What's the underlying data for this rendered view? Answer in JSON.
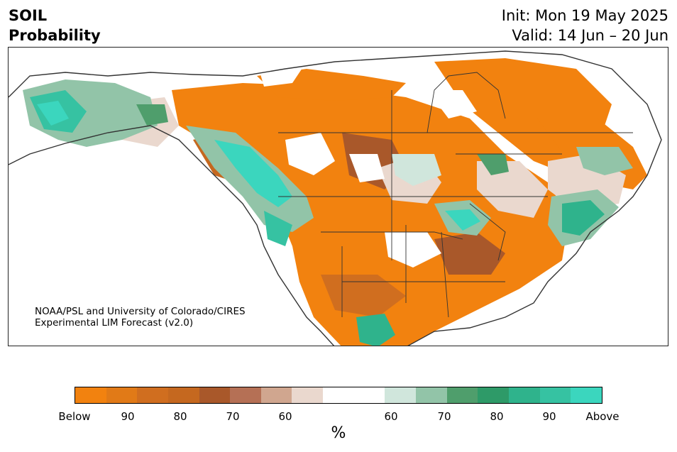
{
  "header": {
    "variable": "SOIL",
    "metric": "Probability",
    "init": "Init: Mon 19 May 2025",
    "valid": "Valid: 14 Jun – 20 Jun"
  },
  "credit": {
    "line1": "NOAA/PSL and University of Colorado/CIRES",
    "line2": "Experimental LIM Forecast (v2.0)"
  },
  "colorbar": {
    "unit": "%",
    "colors": [
      "#f2820f",
      "#e17a17",
      "#d06e1f",
      "#c5681f",
      "#a9582a",
      "#b57055",
      "#d0a68f",
      "#ead8ce",
      "#ffffff",
      "#ffffff",
      "#d0e6dc",
      "#92c4a8",
      "#4f9e6c",
      "#2e9a68",
      "#2fb38c",
      "#36c2a2",
      "#3bd6be"
    ],
    "tick_labels": [
      "Below",
      "90",
      "80",
      "70",
      "60",
      "60",
      "70",
      "80",
      "90",
      "Above"
    ]
  },
  "colors": {
    "below": "#f2820f",
    "above": "#3bd6be",
    "land_outline": "#333333"
  }
}
